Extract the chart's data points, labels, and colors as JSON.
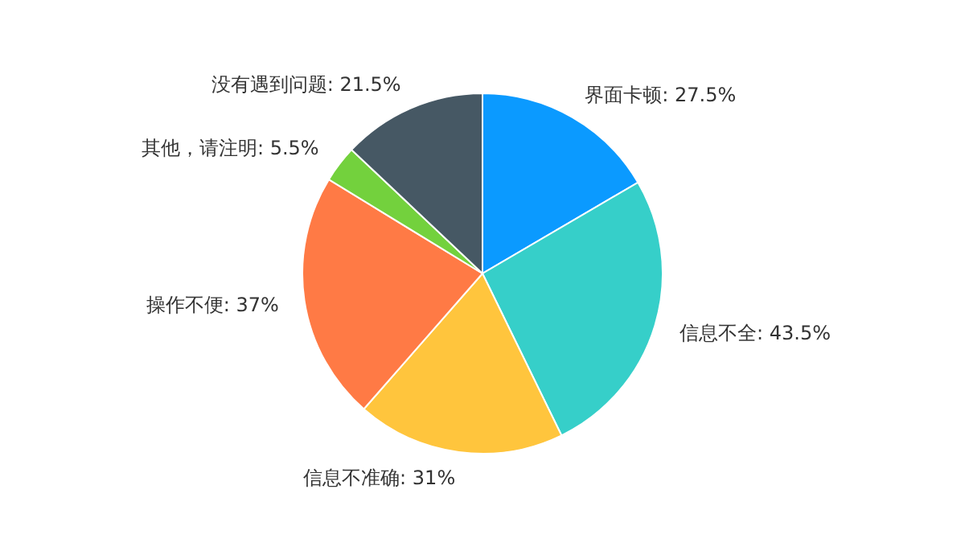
{
  "chart_data": {
    "type": "pie",
    "categories": [
      "界面卡顿",
      "信息不全",
      "信息不准确",
      "操作不便",
      "其他，请注明",
      "没有遇到问题"
    ],
    "values": [
      27.5,
      43.5,
      31,
      37,
      5.5,
      21.5
    ],
    "value_labels": [
      "27.5%",
      "43.5%",
      "31%",
      "37%",
      "5.5%",
      "21.5%"
    ],
    "colors": [
      "#0b9aff",
      "#36cfc9",
      "#ffc53d",
      "#ff7a45",
      "#73d13d",
      "#465864"
    ]
  }
}
